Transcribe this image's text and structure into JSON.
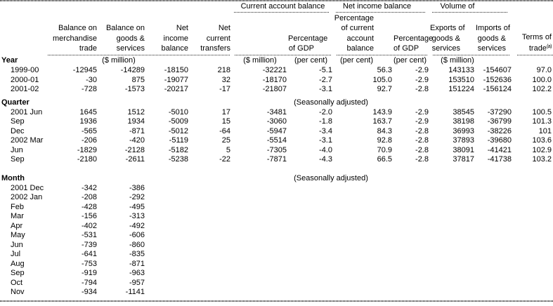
{
  "table": {
    "group_headers": [
      {
        "label": "Current account balance"
      },
      {
        "label": "Net income balance"
      },
      {
        "label": "Volume of"
      }
    ],
    "columns": [
      {
        "lines": [
          "Balance on",
          "merchandise",
          "trade"
        ]
      },
      {
        "lines": [
          "Balance on",
          "goods &",
          "services"
        ]
      },
      {
        "lines": [
          "Net",
          "income",
          "balance"
        ]
      },
      {
        "lines": [
          "Net",
          "current",
          "transfers"
        ]
      },
      {
        "lines": []
      },
      {
        "lines": [
          "Percentage",
          "of GDP"
        ]
      },
      {
        "lines": [
          "Percentage",
          "of current",
          "account",
          "balance"
        ]
      },
      {
        "lines": [
          "Percentage",
          "of GDP"
        ]
      },
      {
        "lines": [
          "Exports of",
          "goods &",
          "services"
        ]
      },
      {
        "lines": [
          "Imports of",
          "goods &",
          "services"
        ]
      },
      {
        "lines": [
          "Terms of",
          "trade"
        ],
        "sup": "(a)"
      }
    ],
    "units": {
      "money": "($ million)",
      "percent": "(per cent)"
    },
    "sections": [
      {
        "id": "year",
        "label": "Year",
        "rows": [
          [
            "1999-00",
            "-12945",
            "-14289",
            "-18150",
            "218",
            "-32221",
            "-5.1",
            "56.3",
            "-2.9",
            "143133",
            "-154607",
            "97.0"
          ],
          [
            "2000-01",
            "-30",
            "875",
            "-19077",
            "32",
            "-18170",
            "-2.7",
            "105.0",
            "-2.9",
            "153510",
            "-152636",
            "100.0"
          ],
          [
            "2001-02",
            "-728",
            "-1573",
            "-20217",
            "-17",
            "-21807",
            "-3.1",
            "92.7",
            "-2.8",
            "151224",
            "-156124",
            "102.2"
          ]
        ]
      },
      {
        "id": "quarter",
        "label": "Quarter",
        "note": "(Seasonally adjusted)",
        "rows": [
          [
            "2001 Jun",
            "1645",
            "1512",
            "-5010",
            "17",
            "-3481",
            "-2.0",
            "143.9",
            "-2.9",
            "38545",
            "-37290",
            "100.5"
          ],
          [
            "Sep",
            "1936",
            "1934",
            "-5009",
            "15",
            "-3060",
            "-1.8",
            "163.7",
            "-2.9",
            "38198",
            "-36799",
            "101.3"
          ],
          [
            "Dec",
            "-565",
            "-871",
            "-5012",
            "-64",
            "-5947",
            "-3.4",
            "84.3",
            "-2.8",
            "36993",
            "-38226",
            "101"
          ],
          [
            "2002 Mar",
            "-206",
            "-420",
            "-5119",
            "25",
            "-5514",
            "-3.1",
            "92.8",
            "-2.8",
            "37893",
            "-39680",
            "103.6"
          ],
          [
            "Jun",
            "-1829",
            "-2128",
            "-5182",
            "5",
            "-7305",
            "-4.0",
            "70.9",
            "-2.8",
            "38091",
            "-41421",
            "102.9"
          ],
          [
            "Sep",
            "-2180",
            "-2611",
            "-5238",
            "-22",
            "-7871",
            "-4.3",
            "66.5",
            "-2.8",
            "37817",
            "-41738",
            "103.2"
          ]
        ]
      },
      {
        "id": "month",
        "label": "Month",
        "note": "(Seasonally adjusted)",
        "rows": [
          [
            "2001 Dec",
            "-342",
            "-386"
          ],
          [
            "2002 Jan",
            "-208",
            "-292"
          ],
          [
            "Feb",
            "-428",
            "-495"
          ],
          [
            "Mar",
            "-156",
            "-313"
          ],
          [
            "Apr",
            "-402",
            "-492"
          ],
          [
            "May",
            "-531",
            "-606"
          ],
          [
            "Jun",
            "-739",
            "-860"
          ],
          [
            "Jul",
            "-641",
            "-835"
          ],
          [
            "Aug",
            "-753",
            "-871"
          ],
          [
            "Sep",
            "-919",
            "-963"
          ],
          [
            "Oct",
            "-794",
            "-957"
          ],
          [
            "Nov",
            "-934",
            "-1141"
          ]
        ]
      }
    ]
  }
}
